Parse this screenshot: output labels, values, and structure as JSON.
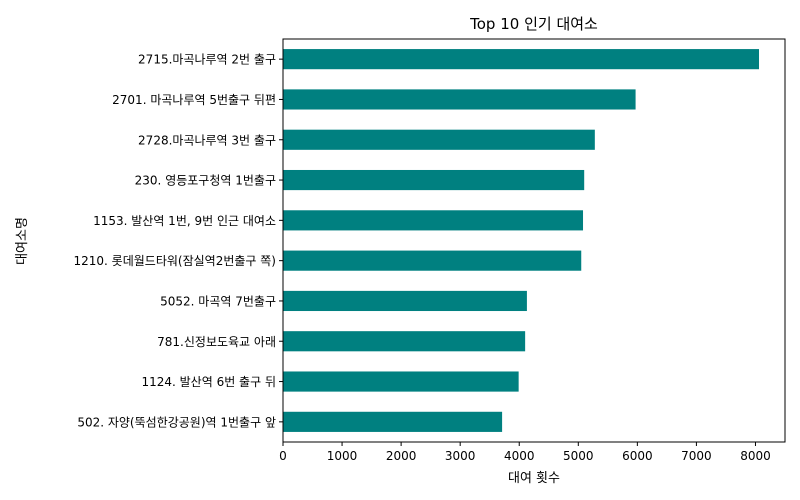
{
  "chart_data": {
    "type": "bar",
    "orientation": "horizontal",
    "title": "Top 10 인기 대여소",
    "xlabel": "대여 횟수",
    "ylabel": "대여소명",
    "xlim": [
      0,
      8500
    ],
    "x_ticks": [
      0,
      1000,
      2000,
      3000,
      4000,
      5000,
      6000,
      7000,
      8000
    ],
    "grid": false,
    "bar_color": "#008080",
    "categories": [
      "2715.마곡나루역 2번 출구 ",
      "2701. 마곡나루역 5번출구 뒤편",
      "2728.마곡나루역 3번 출구",
      "230. 영등포구청역 1번출구",
      "1153. 발산역 1번, 9번 인근 대여소",
      "1210. 롯데월드타워(잠실역2번출구 쪽)",
      "5052. 마곡역 7번출구",
      "781.신정보도육교 아래",
      "1124. 발산역 6번 출구 뒤",
      "502. 자양(뚝섬한강공원)역 1번출구 앞"
    ],
    "values": [
      8060,
      5970,
      5280,
      5100,
      5080,
      5050,
      4130,
      4100,
      3990,
      3710
    ]
  }
}
